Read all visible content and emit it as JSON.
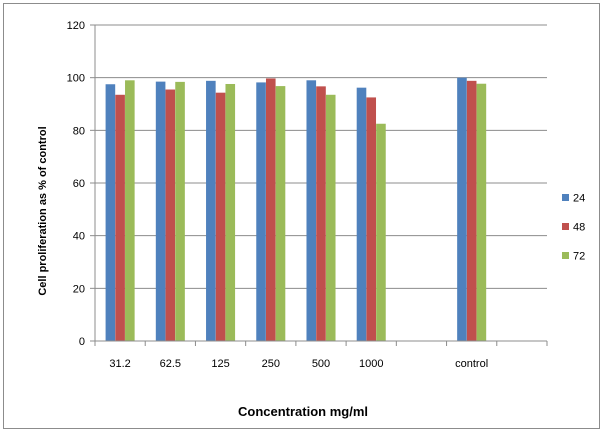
{
  "chart_data": {
    "type": "bar",
    "categories": [
      "31.2",
      "62.5",
      "125",
      "250",
      "500",
      "1000",
      "",
      "control",
      ""
    ],
    "series": [
      {
        "name": "24",
        "color": "#4f81bd",
        "values": [
          97.5,
          98.5,
          98.8,
          98.2,
          99.0,
          96.2,
          null,
          100.0,
          null
        ]
      },
      {
        "name": "48",
        "color": "#c0504d",
        "values": [
          93.5,
          95.5,
          94.3,
          99.7,
          96.7,
          92.5,
          null,
          98.8,
          null
        ]
      },
      {
        "name": "72",
        "color": "#9bbb59",
        "values": [
          99.0,
          98.4,
          97.6,
          96.8,
          93.5,
          82.5,
          null,
          97.7,
          null
        ]
      }
    ],
    "xlabel": "Concentration mg/ml",
    "ylabel": "Cell proliferation as % of control",
    "ylim": [
      0,
      120
    ],
    "yticks": [
      "0",
      "20",
      "40",
      "60",
      "80",
      "100",
      "120"
    ],
    "grid": true,
    "legend_position": "right"
  }
}
